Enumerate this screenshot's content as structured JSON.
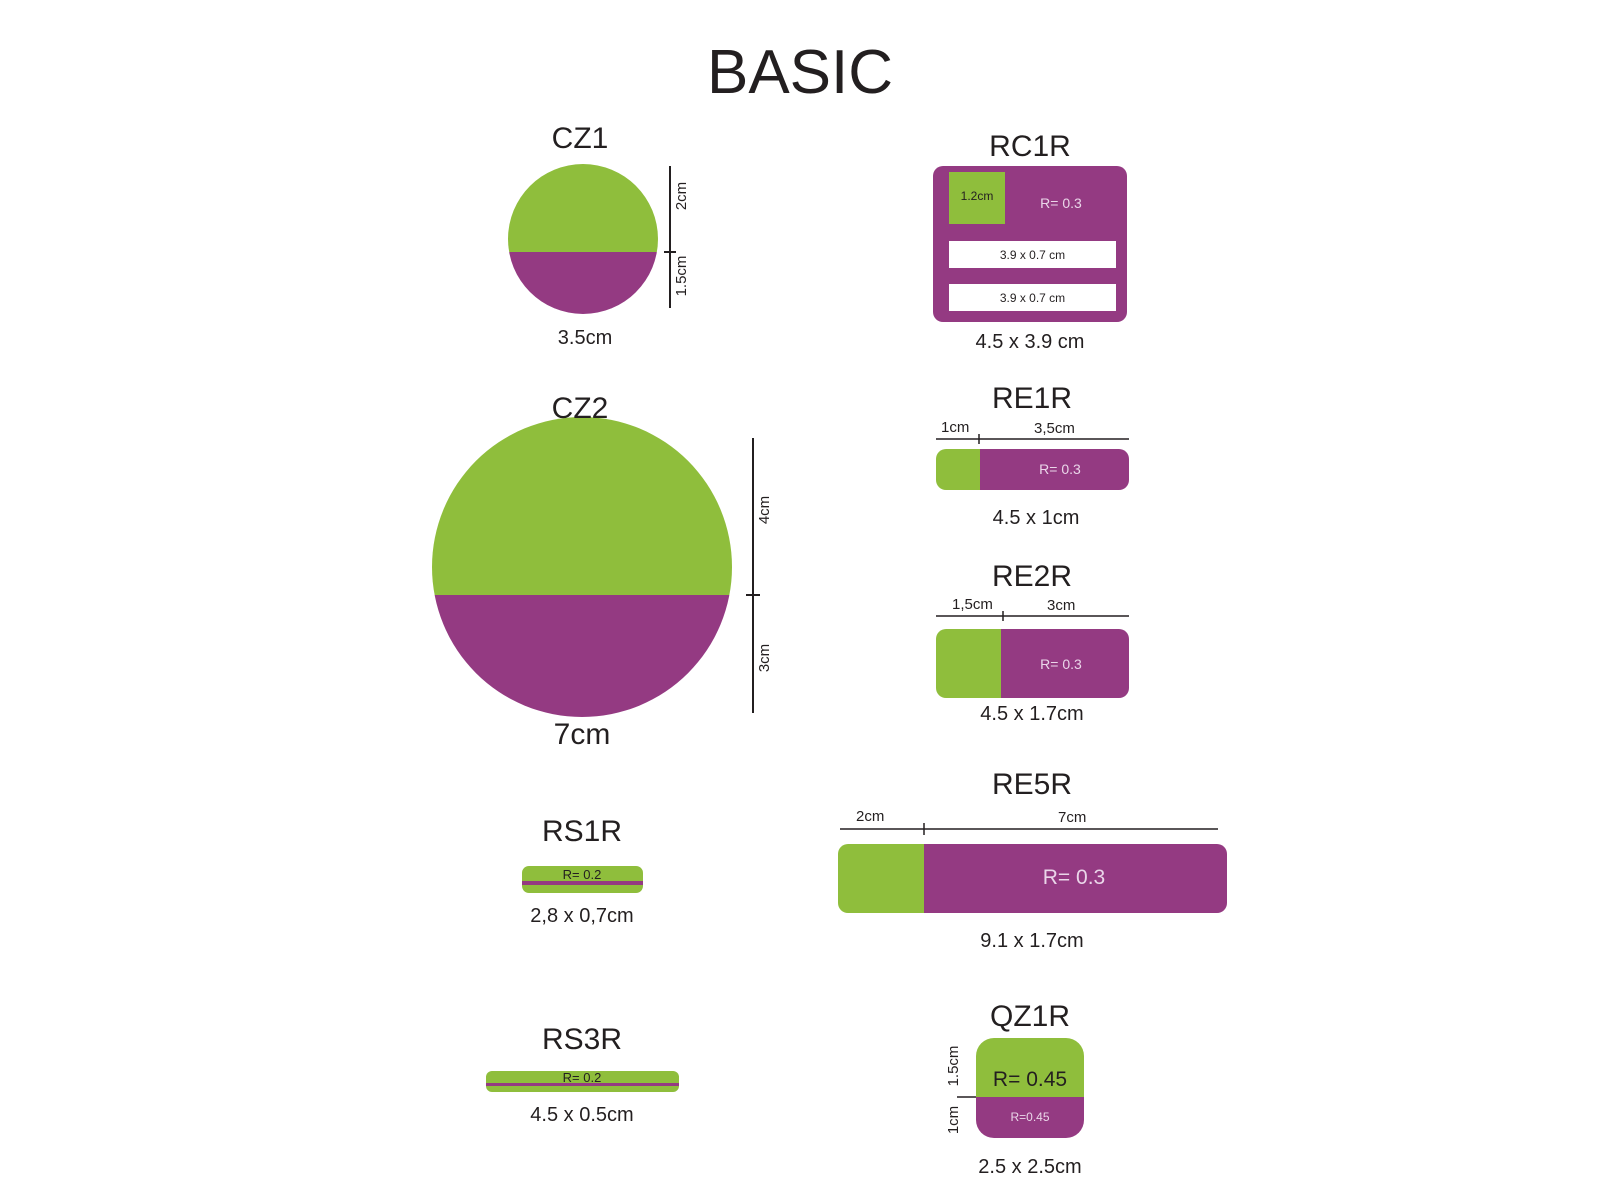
{
  "title": "BASIC",
  "colors": {
    "green": "#8fbe3c",
    "purple": "#943a82",
    "ink": "#231f20"
  },
  "shapes": {
    "cz1": {
      "name": "CZ1",
      "size": "3.5cm",
      "top_dim": "2cm",
      "bottom_dim": "1.5cm"
    },
    "cz2": {
      "name": "CZ2",
      "size": "7cm",
      "top_dim": "4cm",
      "bottom_dim": "3cm"
    },
    "rs1r": {
      "name": "RS1R",
      "radius": "R= 0.2",
      "size": "2,8 x 0,7cm"
    },
    "rs3r": {
      "name": "RS3R",
      "radius": "R= 0.2",
      "size": "4.5 x 0.5cm"
    },
    "rc1r": {
      "name": "RC1R",
      "square": "1.2cm",
      "radius": "R= 0.3",
      "line1": "3.9 x 0.7 cm",
      "line2": "3.9 x 0.7 cm",
      "size": "4.5 x 3.9 cm"
    },
    "re1r": {
      "name": "RE1R",
      "left_dim": "1cm",
      "right_dim": "3,5cm",
      "radius": "R= 0.3",
      "size": "4.5 x 1cm"
    },
    "re2r": {
      "name": "RE2R",
      "left_dim": "1,5cm",
      "right_dim": "3cm",
      "radius": "R= 0.3",
      "size": "4.5 x 1.7cm"
    },
    "re5r": {
      "name": "RE5R",
      "left_dim": "2cm",
      "right_dim": "7cm",
      "radius": "R= 0.3",
      "size": "9.1 x 1.7cm"
    },
    "qz1r": {
      "name": "QZ1R",
      "top_dim": "1.5cm",
      "bottom_dim": "1cm",
      "radius_top": "R= 0.45",
      "radius_bottom": "R=0.45",
      "size": "2.5 x 2.5cm"
    }
  }
}
